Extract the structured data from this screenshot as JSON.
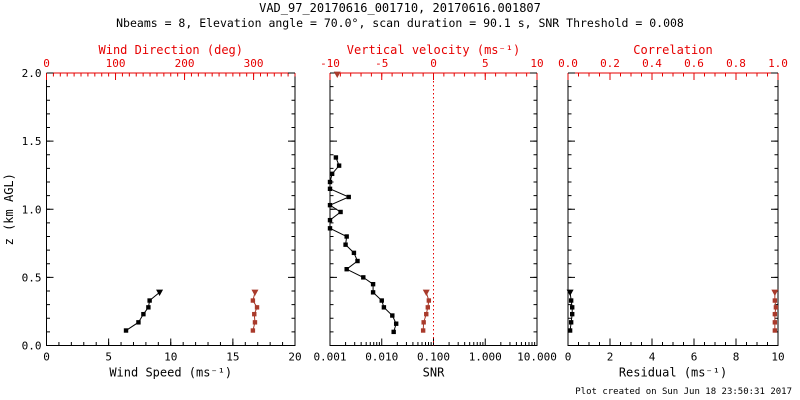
{
  "header": {
    "title": "VAD_97_20170616_001710, 20170616.001807",
    "subtitle": "Nbeams = 8, Elevation angle = 70.0°, scan duration = 90.1 s, SNR Threshold = 0.008"
  },
  "footer": {
    "credit": "Plot created on Sun Jun 18 23:50:31 2017"
  },
  "colors": {
    "background": "#ffffff",
    "black": "#000000",
    "axis_red": "#e60000",
    "data_red": "#a93a2b"
  },
  "chart_data": {
    "type": "line",
    "description": "Lidar VAD wind retrieval: three vertical-profile panels sharing a z (km AGL) axis from 0 to 2",
    "y_axis": {
      "label": "z (km AGL)",
      "min": 0,
      "max": 2,
      "major_ticks": [
        0.0,
        0.5,
        1.0,
        1.5,
        2.0
      ],
      "tick_labels": [
        "0.0",
        "0.5",
        "1.0",
        "1.5",
        "2.0"
      ],
      "minor_step": 0.1
    },
    "panels": [
      {
        "name": "wind",
        "bottom_axis": {
          "label": "Wind Speed (ms⁻¹)",
          "min": 0,
          "max": 20,
          "scale": "linear",
          "major_ticks": [
            0,
            5,
            10,
            15,
            20
          ],
          "tick_labels": [
            "0",
            "5",
            "10",
            "15",
            "20"
          ],
          "minor_step": 1
        },
        "top_axis": {
          "label": "Wind Direction (deg)",
          "min": 0,
          "max": 360,
          "scale": "linear",
          "major_ticks": [
            0,
            100,
            200,
            300
          ],
          "tick_labels": [
            "0",
            "100",
            "200",
            "300"
          ],
          "minor_step": 10
        },
        "series": [
          {
            "name": "wind-speed-profile",
            "axis": "bottom",
            "color": "black",
            "top_marker": "triangle",
            "z": [
              0.11,
              0.17,
              0.23,
              0.28,
              0.33,
              0.39
            ],
            "values": [
              6.4,
              7.4,
              7.8,
              8.2,
              8.3,
              9.1
            ]
          },
          {
            "name": "wind-direction-profile",
            "axis": "top",
            "color": "data_red",
            "top_marker": "triangle",
            "z": [
              0.11,
              0.17,
              0.23,
              0.28,
              0.33,
              0.39
            ],
            "values": [
              299,
              302,
              301,
              305,
              299,
              302
            ]
          }
        ]
      },
      {
        "name": "snr",
        "bottom_axis": {
          "label": "SNR",
          "min": 0.001,
          "max": 10,
          "scale": "log",
          "major_ticks": [
            0.001,
            0.01,
            0.1,
            1,
            10
          ],
          "tick_labels": [
            "0.001",
            "0.010",
            "0.100",
            "1.000",
            "10.000"
          ]
        },
        "top_axis": {
          "label": "Vertical velocity (ms⁻¹)",
          "min": -10,
          "max": 10,
          "scale": "linear",
          "major_ticks": [
            -10,
            -5,
            0,
            5,
            10
          ],
          "tick_labels": [
            "-10",
            "-5",
            "0",
            "5",
            "10"
          ],
          "minor_step": 1
        },
        "ref_line": {
          "axis": "top",
          "value": 0,
          "style": "dotted",
          "color": "axis_red"
        },
        "series": [
          {
            "name": "snr-profile",
            "axis": "bottom",
            "color": "black",
            "z": [
              0.1,
              0.16,
              0.22,
              0.28,
              0.33,
              0.39,
              0.45,
              0.5,
              0.56,
              0.62,
              0.68,
              0.74,
              0.8,
              0.86,
              0.92,
              0.98,
              1.03,
              1.09,
              1.15,
              1.2,
              1.26,
              1.32,
              1.38
            ],
            "values": [
              0.017,
              0.019,
              0.016,
              0.011,
              0.01,
              0.0068,
              0.0068,
              0.0044,
              0.0021,
              0.0034,
              0.0029,
              0.002,
              0.0021,
              0.001,
              0.001,
              0.0016,
              0.001,
              0.0023,
              0.001,
              0.001,
              0.0011,
              0.0015,
              0.0013
            ]
          },
          {
            "name": "vertical-velocity-profile",
            "axis": "top",
            "color": "data_red",
            "top_marker": "triangle",
            "z": [
              0.11,
              0.17,
              0.23,
              0.28,
              0.33,
              0.39
            ],
            "values": [
              -1.0,
              -0.95,
              -0.7,
              -0.55,
              -0.45,
              -0.7
            ]
          },
          {
            "name": "clipped-vertical-velocity-marker",
            "axis": "top",
            "color": "data_red",
            "marker": "triangle",
            "no_line": true,
            "z": [
              1.99
            ],
            "values": [
              -9.3
            ]
          }
        ]
      },
      {
        "name": "residual",
        "bottom_axis": {
          "label": "Residual (ms⁻¹)",
          "min": 0,
          "max": 10,
          "scale": "linear",
          "major_ticks": [
            0,
            2,
            4,
            6,
            8,
            10
          ],
          "tick_labels": [
            "0",
            "2",
            "4",
            "6",
            "8",
            "10"
          ],
          "minor_step": 0.5
        },
        "top_axis": {
          "label": "Correlation",
          "min": 0,
          "max": 1,
          "scale": "linear",
          "major_ticks": [
            0.0,
            0.2,
            0.4,
            0.6,
            0.8,
            1.0
          ],
          "tick_labels": [
            "0.0",
            "0.2",
            "0.4",
            "0.6",
            "0.8",
            "1.0"
          ],
          "minor_step": 0.05
        },
        "series": [
          {
            "name": "residual-profile",
            "axis": "bottom",
            "color": "black",
            "top_marker": "triangle",
            "z": [
              0.11,
              0.17,
              0.23,
              0.28,
              0.33,
              0.39
            ],
            "values": [
              0.1,
              0.15,
              0.2,
              0.2,
              0.15,
              0.1
            ]
          },
          {
            "name": "correlation-profile",
            "axis": "top",
            "color": "data_red",
            "top_marker": "triangle",
            "z": [
              0.11,
              0.17,
              0.23,
              0.28,
              0.33,
              0.39
            ],
            "values": [
              0.985,
              0.985,
              0.985,
              0.99,
              0.985,
              0.985
            ]
          }
        ]
      }
    ]
  }
}
